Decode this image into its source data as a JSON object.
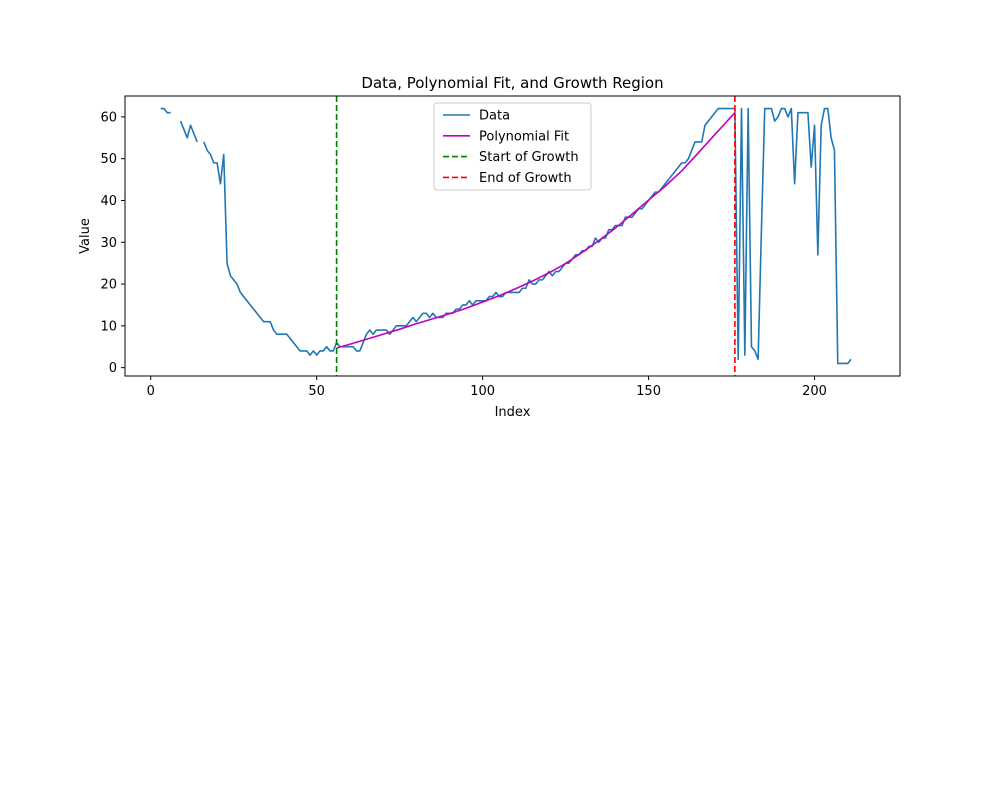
{
  "chart_data": {
    "type": "line",
    "title": "Data, Polynomial Fit, and Growth Region",
    "xlabel": "Index",
    "ylabel": "Value",
    "xlim": [
      -7.75,
      225.75
    ],
    "ylim": [
      -2.0,
      65.0
    ],
    "x_ticks": [
      0,
      50,
      100,
      150,
      200
    ],
    "y_ticks": [
      0,
      10,
      20,
      30,
      40,
      50,
      60
    ],
    "grid": false,
    "legend_position": "upper center",
    "series": [
      {
        "name": "Data",
        "type": "line",
        "color": "#1f77b4",
        "dash": "solid",
        "segments": [
          [
            [
              3,
              62
            ],
            [
              4,
              62
            ],
            [
              5,
              61
            ],
            [
              6,
              61
            ]
          ],
          [
            [
              9,
              59
            ],
            [
              10,
              57
            ],
            [
              11,
              55
            ],
            [
              12,
              58
            ],
            [
              13,
              56
            ],
            [
              14,
              54
            ]
          ],
          [
            [
              16,
              54
            ],
            [
              17,
              52
            ],
            [
              18,
              51
            ],
            [
              19,
              49
            ],
            [
              20,
              49
            ],
            [
              21,
              44
            ],
            [
              22,
              51
            ],
            [
              23,
              25
            ],
            [
              24,
              22
            ],
            [
              25,
              21
            ],
            [
              26,
              20
            ],
            [
              27,
              18
            ],
            [
              28,
              17
            ],
            [
              29,
              16
            ],
            [
              30,
              15
            ],
            [
              31,
              14
            ],
            [
              32,
              13
            ],
            [
              33,
              12
            ],
            [
              34,
              11
            ],
            [
              35,
              11
            ],
            [
              36,
              11
            ],
            [
              37,
              9
            ],
            [
              38,
              8
            ],
            [
              39,
              8
            ],
            [
              40,
              8
            ],
            [
              41,
              8
            ],
            [
              42,
              7
            ],
            [
              43,
              6
            ],
            [
              44,
              5
            ],
            [
              45,
              4
            ],
            [
              46,
              4
            ],
            [
              47,
              4
            ],
            [
              48,
              3
            ],
            [
              49,
              4
            ],
            [
              50,
              3
            ],
            [
              51,
              4
            ],
            [
              52,
              4
            ],
            [
              53,
              5
            ],
            [
              54,
              4
            ],
            [
              55,
              4
            ],
            [
              56,
              6
            ],
            [
              57,
              5
            ],
            [
              58,
              5
            ],
            [
              59,
              5
            ],
            [
              60,
              5
            ],
            [
              61,
              5
            ],
            [
              62,
              4
            ],
            [
              63,
              4
            ],
            [
              64,
              6
            ],
            [
              65,
              8
            ],
            [
              66,
              9
            ],
            [
              67,
              8
            ],
            [
              68,
              9
            ],
            [
              69,
              9
            ],
            [
              70,
              9
            ],
            [
              71,
              9
            ],
            [
              72,
              8
            ],
            [
              73,
              9
            ],
            [
              74,
              10
            ],
            [
              75,
              10
            ],
            [
              76,
              10
            ],
            [
              77,
              10
            ],
            [
              78,
              11
            ],
            [
              79,
              12
            ],
            [
              80,
              11
            ],
            [
              81,
              12
            ],
            [
              82,
              13
            ],
            [
              83,
              13
            ],
            [
              84,
              12
            ],
            [
              85,
              13
            ],
            [
              86,
              12
            ],
            [
              87,
              12
            ],
            [
              88,
              12
            ],
            [
              89,
              13
            ],
            [
              90,
              13
            ],
            [
              91,
              13
            ],
            [
              92,
              14
            ],
            [
              93,
              14
            ],
            [
              94,
              15
            ],
            [
              95,
              15
            ],
            [
              96,
              16
            ],
            [
              97,
              15
            ],
            [
              98,
              16
            ],
            [
              99,
              16
            ],
            [
              100,
              16
            ],
            [
              101,
              16
            ],
            [
              102,
              17
            ],
            [
              103,
              17
            ],
            [
              104,
              18
            ],
            [
              105,
              17
            ],
            [
              106,
              17
            ],
            [
              107,
              18
            ],
            [
              108,
              18
            ],
            [
              109,
              18
            ],
            [
              110,
              18
            ],
            [
              111,
              18
            ],
            [
              112,
              19
            ],
            [
              113,
              19
            ],
            [
              114,
              21
            ],
            [
              115,
              20
            ],
            [
              116,
              20
            ],
            [
              117,
              21
            ],
            [
              118,
              21
            ],
            [
              119,
              22
            ],
            [
              120,
              23
            ],
            [
              121,
              22
            ],
            [
              122,
              23
            ],
            [
              123,
              23
            ],
            [
              124,
              24
            ],
            [
              125,
              25
            ],
            [
              126,
              25
            ],
            [
              127,
              26
            ],
            [
              128,
              27
            ],
            [
              129,
              27
            ],
            [
              130,
              28
            ],
            [
              131,
              28
            ],
            [
              132,
              29
            ],
            [
              133,
              29
            ],
            [
              134,
              31
            ],
            [
              135,
              30
            ],
            [
              136,
              31
            ],
            [
              137,
              31
            ],
            [
              138,
              33
            ],
            [
              139,
              33
            ],
            [
              140,
              34
            ],
            [
              141,
              34
            ],
            [
              142,
              34
            ],
            [
              143,
              36
            ],
            [
              144,
              36
            ],
            [
              145,
              36
            ],
            [
              146,
              37
            ],
            [
              147,
              38
            ],
            [
              148,
              38
            ],
            [
              149,
              39
            ],
            [
              150,
              40
            ],
            [
              151,
              41
            ],
            [
              152,
              42
            ],
            [
              153,
              42
            ],
            [
              154,
              43
            ],
            [
              155,
              44
            ],
            [
              156,
              45
            ],
            [
              157,
              46
            ],
            [
              158,
              47
            ],
            [
              159,
              48
            ],
            [
              160,
              49
            ],
            [
              161,
              49
            ],
            [
              162,
              50
            ],
            [
              163,
              52
            ],
            [
              164,
              54
            ],
            [
              165,
              54
            ],
            [
              166,
              54
            ],
            [
              167,
              58
            ],
            [
              168,
              59
            ],
            [
              169,
              60
            ],
            [
              170,
              61
            ],
            [
              171,
              62
            ],
            [
              172,
              62
            ],
            [
              173,
              62
            ],
            [
              174,
              62
            ],
            [
              175,
              62
            ],
            [
              176,
              62
            ],
            [
              177,
              2
            ],
            [
              178,
              62
            ],
            [
              179,
              3
            ],
            [
              180,
              62
            ],
            [
              181,
              5
            ],
            [
              182,
              4
            ],
            [
              183,
              2
            ],
            [
              184,
              33
            ],
            [
              185,
              62
            ],
            [
              186,
              62
            ],
            [
              187,
              62
            ],
            [
              188,
              59
            ],
            [
              189,
              60
            ],
            [
              190,
              62
            ],
            [
              191,
              62
            ],
            [
              192,
              60
            ],
            [
              193,
              62
            ],
            [
              194,
              44
            ],
            [
              195,
              61
            ],
            [
              196,
              61
            ],
            [
              197,
              61
            ],
            [
              198,
              61
            ],
            [
              199,
              48
            ],
            [
              200,
              58
            ],
            [
              201,
              27
            ],
            [
              202,
              58
            ],
            [
              203,
              62
            ],
            [
              204,
              62
            ],
            [
              205,
              55
            ],
            [
              206,
              52
            ],
            [
              207,
              1
            ],
            [
              208,
              1
            ],
            [
              209,
              1
            ],
            [
              210,
              1
            ],
            [
              211,
              2
            ]
          ]
        ]
      },
      {
        "name": "Polynomial Fit",
        "type": "line",
        "color": "#bf00bf",
        "dash": "solid",
        "points": [
          [
            56,
            4.7
          ],
          [
            60,
            5.6
          ],
          [
            65,
            6.8
          ],
          [
            70,
            8.0
          ],
          [
            75,
            9.2
          ],
          [
            80,
            10.5
          ],
          [
            85,
            11.7
          ],
          [
            90,
            12.9
          ],
          [
            95,
            14.2
          ],
          [
            100,
            15.7
          ],
          [
            105,
            17.2
          ],
          [
            110,
            18.9
          ],
          [
            115,
            20.7
          ],
          [
            120,
            22.7
          ],
          [
            125,
            24.9
          ],
          [
            130,
            27.6
          ],
          [
            135,
            30.4
          ],
          [
            140,
            33.4
          ],
          [
            145,
            36.7
          ],
          [
            150,
            40.1
          ],
          [
            155,
            43.4
          ],
          [
            160,
            47.1
          ],
          [
            165,
            51.4
          ],
          [
            170,
            55.8
          ],
          [
            176,
            61.0
          ]
        ]
      },
      {
        "name": "Start of Growth",
        "type": "vline",
        "color": "#008000",
        "dash": "dashed",
        "x": 56
      },
      {
        "name": "End of Growth",
        "type": "vline",
        "color": "#ff0000",
        "dash": "dashed",
        "x": 176
      }
    ]
  }
}
